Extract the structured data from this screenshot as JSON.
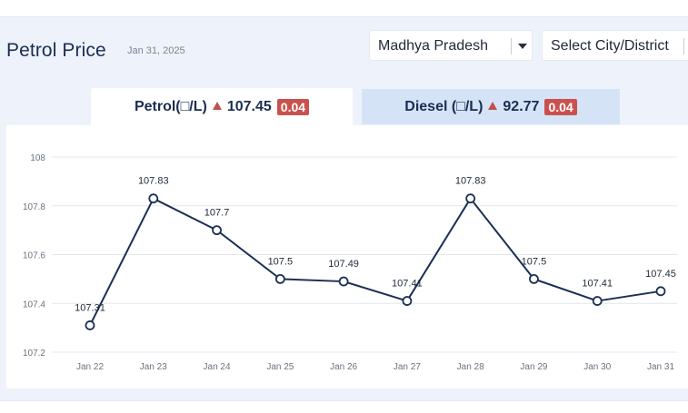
{
  "header": {
    "title": "Petrol Price",
    "date": "Jan 31, 2025"
  },
  "filters": {
    "state": "Madhya Pradesh",
    "city_placeholder": "Select City/District"
  },
  "tabs": [
    {
      "label": "Petrol(□/L)",
      "price": "107.45",
      "change": "0.04",
      "active": true
    },
    {
      "label": "Diesel (□/L)",
      "price": "92.77",
      "change": "0.04",
      "active": false
    }
  ],
  "colors": {
    "line": "#1b2f55",
    "up_arrow": "#c0504d",
    "badge": "#c9524e",
    "active_tab": "#ffffff",
    "inactive_tab": "#d5e3f7"
  },
  "chart_data": {
    "type": "line",
    "title": "",
    "xlabel": "",
    "ylabel": "",
    "categories": [
      "Jan 22",
      "Jan 23",
      "Jan 24",
      "Jan 25",
      "Jan 26",
      "Jan 27",
      "Jan 28",
      "Jan 29",
      "Jan 30",
      "Jan 31"
    ],
    "values": [
      107.31,
      107.83,
      107.7,
      107.5,
      107.49,
      107.41,
      107.83,
      107.5,
      107.41,
      107.45
    ],
    "data_labels": [
      "107.31",
      "107.83",
      "107.7",
      "107.5",
      "107.49",
      "107.41",
      "107.83",
      "107.5",
      "107.41",
      "107.45"
    ],
    "yticks": [
      107.2,
      107.4,
      107.6,
      107.8,
      108
    ],
    "ytick_labels": [
      "107.2",
      "107.4",
      "107.6",
      "107.8",
      "108"
    ],
    "ylim": [
      107.2,
      108
    ],
    "grid": true,
    "legend": "none"
  }
}
